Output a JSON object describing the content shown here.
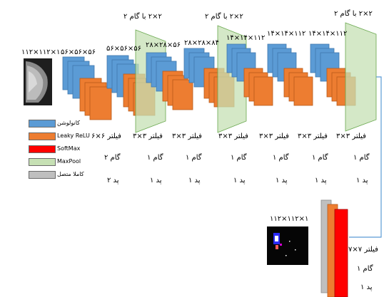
{
  "input": {
    "size_label": "۱۱۲×۱۱۲×۱"
  },
  "output": {
    "size_label": "۱۱۲×۱۱۲×۱"
  },
  "blocks": [
    {
      "size_label": "۵۶×۵۶×۵۶",
      "filter": "فیلتر  ۶×۶",
      "stride": "گام  ۲",
      "pad": "پد ۲"
    },
    {
      "size_label": "۵۶×۵۶×۵۶",
      "filter": "فیلتر  ۳×۳",
      "stride": "گام  ۱",
      "pad": "پد ۱"
    },
    {
      "size_label": "۲۸×۲۸×۵۶",
      "filter": "فیلتر  ۳×۳",
      "stride": "گام  ۱",
      "pad": "پد ۱"
    },
    {
      "size_label": "۲۸×۲۸×۸۴",
      "filter": "فیلتر  ۳×۳",
      "stride": "گام  ۱",
      "pad": "پد ۱"
    },
    {
      "size_label": "۱۴×۱۴×۱۱۲",
      "filter": "فیلتر  ۳×۳",
      "stride": "گام  ۱",
      "pad": "پد ۱"
    },
    {
      "size_label": "۱۴×۱۴×۱۱۲",
      "filter": "فیلتر  ۳×۳",
      "stride": "گام  ۱",
      "pad": "پد ۱"
    },
    {
      "size_label": "۱۴×۱۴×۱۱۲",
      "filter": "فیلتر  ۳×۳",
      "stride": "گام  ۱",
      "pad": "پد ۱"
    },
    {
      "size_label": "",
      "filter": "فیلتر  ۳×۳",
      "stride": "گام  ۱",
      "pad": "پد ۱"
    }
  ],
  "pool_labels": [
    "۲×۲ با گام ۲",
    "۲×۲ با گام ۲",
    "۲×۲ با گام ۲"
  ],
  "final_layer": {
    "filter": "فیلتر  ۷×۷",
    "stride": "گام  ۱",
    "pad": "پد ۱"
  },
  "legend": [
    {
      "label": "کانولوشن",
      "color": "#5b9bd5"
    },
    {
      "label": "Leaky ReLU",
      "color": "#ed7d31"
    },
    {
      "label": "SoftMax",
      "color": "#ff0000"
    },
    {
      "label": "MaxPool",
      "color": "#c6e0b4"
    },
    {
      "label": "کاملا متصل",
      "color": "#bfbfbf"
    }
  ]
}
